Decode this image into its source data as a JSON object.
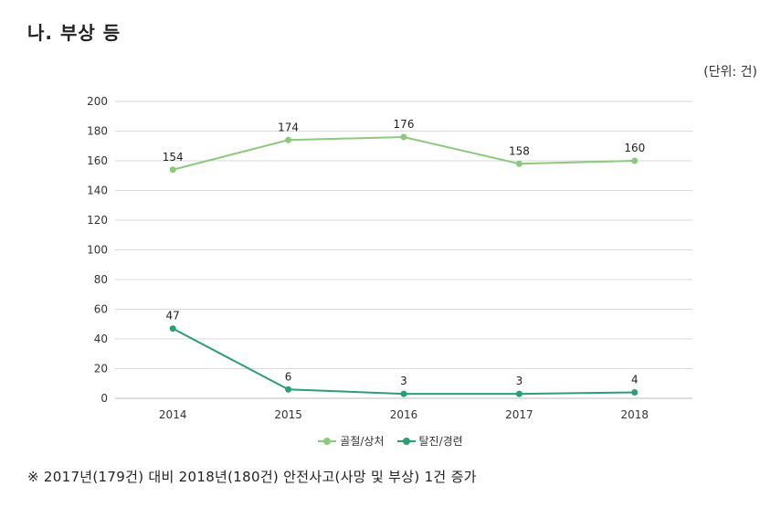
{
  "page": {
    "section_title": "나. 부상 등",
    "unit_label": "(단위: 건)",
    "footnote": "※ 2017년(179건) 대비 2018년(180건) 안전사고(사망 및 부상) 1건 증가"
  },
  "chart_data": {
    "type": "line",
    "title": "",
    "xlabel": "",
    "ylabel": "",
    "categories": [
      "2014",
      "2015",
      "2016",
      "2017",
      "2018"
    ],
    "ylim": [
      0,
      200
    ],
    "yticks": [
      0,
      20,
      40,
      60,
      80,
      100,
      120,
      140,
      160,
      180,
      200
    ],
    "grid": true,
    "legend_position": "bottom-center",
    "series": [
      {
        "name": "골절/상처",
        "values": [
          154,
          174,
          176,
          158,
          160
        ],
        "color": "#8cc97e"
      },
      {
        "name": "탈진/경련",
        "values": [
          47,
          6,
          3,
          3,
          4
        ],
        "color": "#2e9e72"
      }
    ]
  }
}
